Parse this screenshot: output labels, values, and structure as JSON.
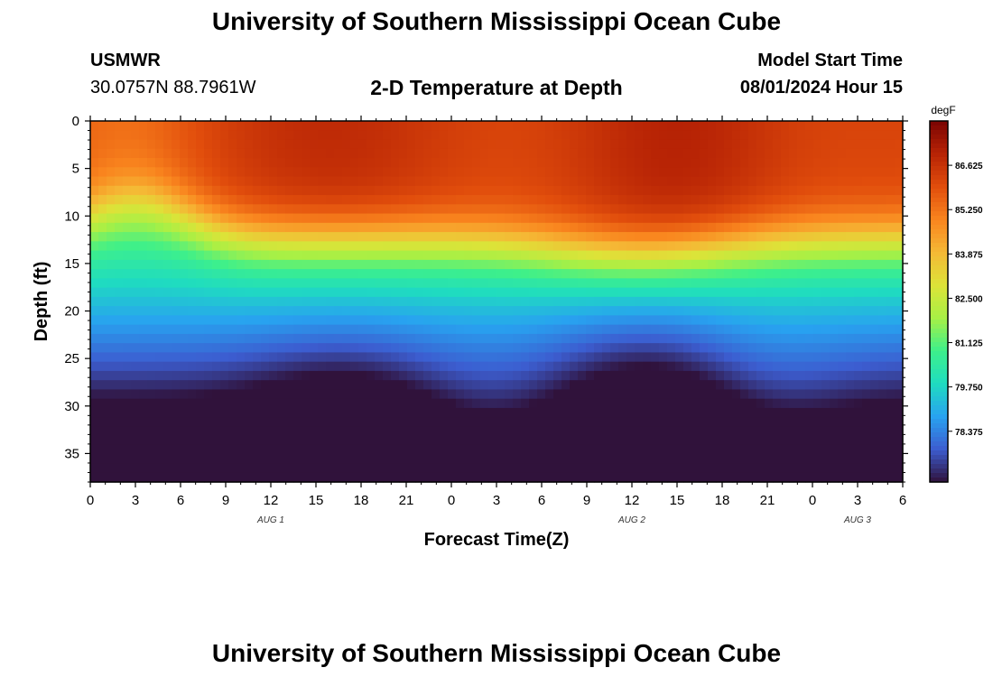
{
  "header": {
    "title": "University of Southern Mississippi Ocean Cube",
    "station": "USMWR",
    "coordinates": "30.0757N  88.7961W",
    "subtitle": "2-D Temperature at Depth",
    "model_start_label": "Model Start Time",
    "model_start_value": "08/01/2024 Hour 15"
  },
  "footer": {
    "title": "University of Southern Mississippi Ocean Cube"
  },
  "chart_data": {
    "type": "heatmap",
    "title": "2-D Temperature at Depth",
    "xlabel": "Forecast Time(Z)",
    "ylabel": "Depth (ft)",
    "colorbar_label": "degF",
    "x_ticks": [
      "0",
      "3",
      "6",
      "9",
      "12",
      "15",
      "18",
      "21",
      "0",
      "3",
      "6",
      "9",
      "12",
      "15",
      "18",
      "21",
      "0",
      "3",
      "6"
    ],
    "x_range_hours": [
      0,
      54
    ],
    "date_labels": [
      {
        "label": "AUG 1",
        "hour": 12
      },
      {
        "label": "AUG 2",
        "hour": 36
      },
      {
        "label": "AUG 3",
        "hour": 51
      }
    ],
    "y_ticks": [
      "0",
      "5",
      "10",
      "15",
      "20",
      "25",
      "30",
      "35"
    ],
    "y_range_ft": [
      0,
      38
    ],
    "y_inverted": true,
    "colorbar_ticks": [
      "86.625",
      "85.250",
      "83.875",
      "82.500",
      "81.125",
      "79.750",
      "78.375"
    ],
    "colorbar_range_degF": [
      76.8,
      88.0
    ],
    "colormap": [
      "#30123b",
      "#3c5dd0",
      "#28a2f0",
      "#1fdcc0",
      "#3ef08a",
      "#a8f045",
      "#dde338",
      "#f5b835",
      "#f9841e",
      "#e14d0c",
      "#b72305",
      "#7a0403"
    ],
    "field_summary": {
      "surface_degF": 86.5,
      "bottom_degF": 77.8,
      "description_units": "degF"
    }
  }
}
